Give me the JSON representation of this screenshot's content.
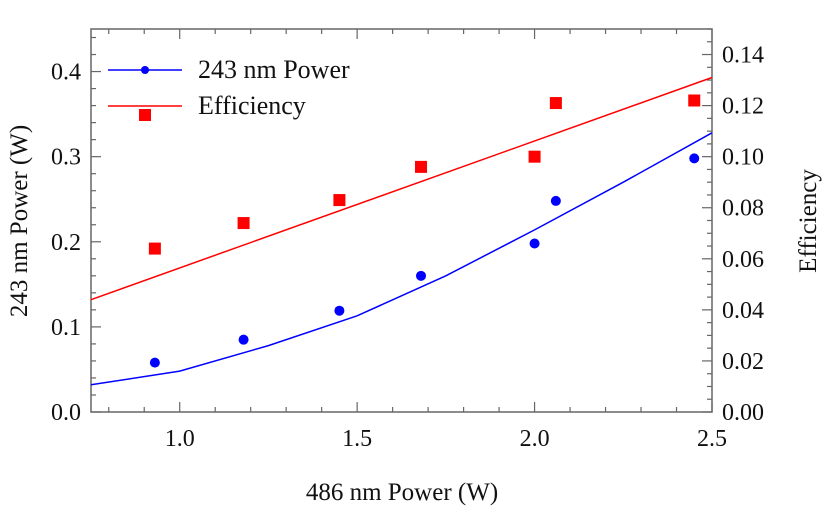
{
  "chart_data": {
    "type": "scatter",
    "title": "",
    "xlabel": "486 nm Power (W)",
    "ylabel": "243 nm Power (W)",
    "y2label": "Efficiency",
    "xlim": [
      0.75,
      2.5
    ],
    "ylim": [
      0.0,
      0.45
    ],
    "y2lim": [
      0.0,
      0.15
    ],
    "xticks": [
      "1.0",
      "1.5",
      "2.0",
      "2.5"
    ],
    "yticks": [
      "0.0",
      "0.1",
      "0.2",
      "0.3",
      "0.4"
    ],
    "y2ticks": [
      "0.00",
      "0.02",
      "0.04",
      "0.06",
      "0.08",
      "0.10",
      "0.12",
      "0.14"
    ],
    "grid": false,
    "legend_position": "top-left",
    "series": [
      {
        "name": "243 nm Power",
        "axis": "left",
        "color": "#0000ff",
        "marker": "circle",
        "x": [
          0.93,
          1.18,
          1.45,
          1.68,
          2.0,
          2.06,
          2.45
        ],
        "y": [
          0.058,
          0.085,
          0.119,
          0.16,
          0.198,
          0.248,
          0.298
        ],
        "fit": {
          "x": [
            0.75,
            1.0,
            1.25,
            1.5,
            1.75,
            2.0,
            2.25,
            2.5
          ],
          "y": [
            0.032,
            0.048,
            0.078,
            0.113,
            0.16,
            0.214,
            0.27,
            0.328
          ]
        }
      },
      {
        "name": "Efficiency",
        "axis": "right",
        "color": "#ff0000",
        "marker": "square",
        "x": [
          0.93,
          1.18,
          1.45,
          1.68,
          2.0,
          2.06,
          2.45
        ],
        "y": [
          0.064,
          0.074,
          0.083,
          0.096,
          0.1,
          0.121,
          0.122
        ],
        "fit": {
          "x": [
            0.75,
            2.5
          ],
          "y": [
            0.044,
            0.131
          ]
        }
      }
    ]
  }
}
